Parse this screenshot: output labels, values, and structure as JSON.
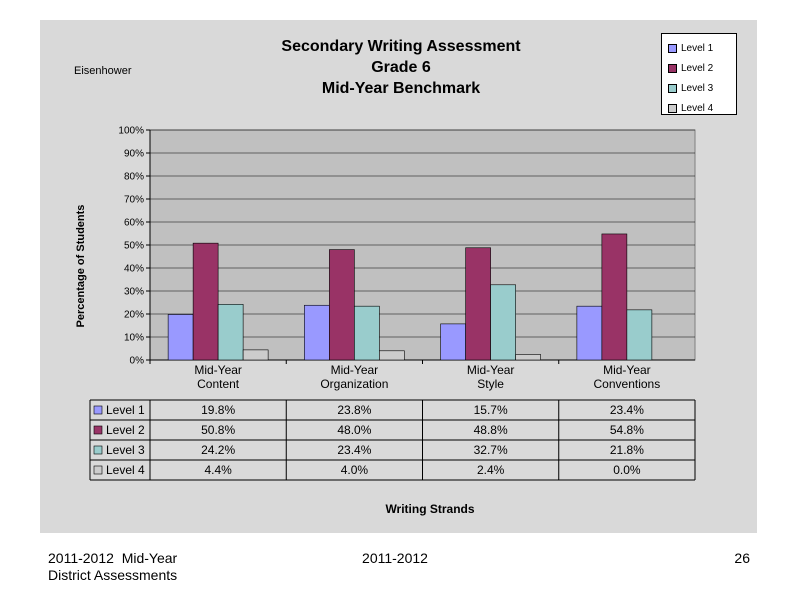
{
  "chart_data": {
    "type": "bar",
    "title": [
      "Secondary Writing Assessment",
      "Grade 6",
      "Mid-Year Benchmark"
    ],
    "subtitle": "Eisenhower",
    "xlabel": "Writing Strands",
    "ylabel": "Percentage of Students",
    "ylim": [
      0,
      100
    ],
    "yticks": [
      "0%",
      "10%",
      "20%",
      "30%",
      "40%",
      "50%",
      "60%",
      "70%",
      "80%",
      "90%",
      "100%"
    ],
    "grid": true,
    "legend_position": "top-right",
    "categories": [
      [
        "Mid-Year",
        "Content"
      ],
      [
        "Mid-Year",
        "Organization"
      ],
      [
        "Mid-Year",
        "Style"
      ],
      [
        "Mid-Year",
        "Conventions"
      ]
    ],
    "series": [
      {
        "name": "Level 1",
        "color": "#9999ff",
        "values": [
          19.8,
          23.8,
          15.7,
          23.4
        ],
        "labels": [
          "19.8%",
          "23.8%",
          "15.7%",
          "23.4%"
        ]
      },
      {
        "name": "Level 2",
        "color": "#993366",
        "values": [
          50.8,
          48.0,
          48.8,
          54.8
        ],
        "labels": [
          "50.8%",
          "48.0%",
          "48.8%",
          "54.8%"
        ]
      },
      {
        "name": "Level 3",
        "color": "#99cccc",
        "values": [
          24.2,
          23.4,
          32.7,
          21.8
        ],
        "labels": [
          "24.2%",
          "23.4%",
          "32.7%",
          "21.8%"
        ]
      },
      {
        "name": "Level 4",
        "color": "#cccccc",
        "values": [
          4.4,
          4.0,
          2.4,
          0.0
        ],
        "labels": [
          "4.4%",
          "4.0%",
          "2.4%",
          "0.0%"
        ]
      }
    ]
  },
  "footer": {
    "left_line1": "2011-2012  Mid-Year",
    "left_line2": "District Assessments",
    "center": "2011-2012",
    "page": "26"
  }
}
